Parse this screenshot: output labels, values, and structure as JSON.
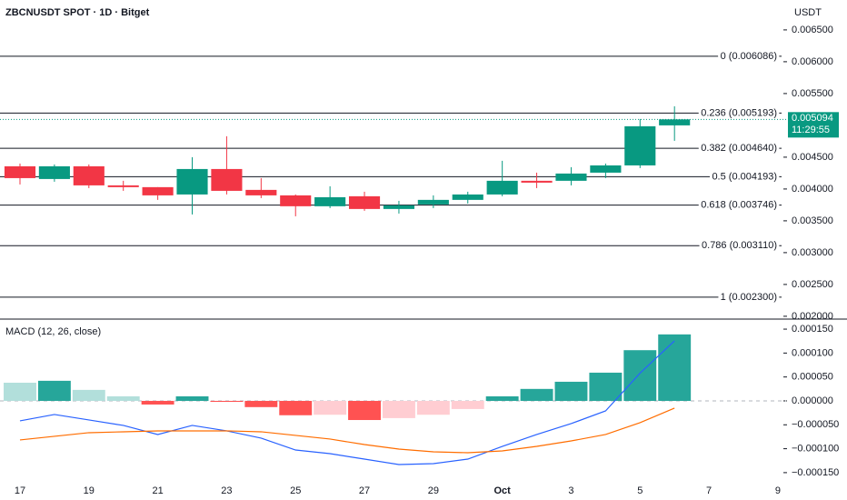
{
  "chart_data": [
    {
      "type": "candlestick",
      "title": "ZBCNUSDT SPOT · 1D · Bitget",
      "y_axis_label": "USDT",
      "x": [
        0,
        1,
        2,
        3,
        4,
        5,
        6,
        7,
        8,
        9,
        10,
        11,
        12,
        13,
        14,
        15,
        16,
        17,
        18,
        19
      ],
      "open": [
        0.004357,
        0.004157,
        0.004357,
        0.004057,
        0.004029,
        0.003914,
        0.004314,
        0.003986,
        0.0039,
        0.003729,
        0.003886,
        0.003686,
        0.003757,
        0.003829,
        0.003914,
        0.004129,
        0.004129,
        0.004257,
        0.004371,
        0.005
      ],
      "high": [
        0.0044,
        0.004386,
        0.004386,
        0.004129,
        0.004029,
        0.0045,
        0.004829,
        0.004171,
        0.003914,
        0.004043,
        0.003957,
        0.003814,
        0.0039,
        0.003957,
        0.004443,
        0.004257,
        0.004343,
        0.0044,
        0.0051,
        0.0053
      ],
      "low": [
        0.004071,
        0.004114,
        0.004014,
        0.003971,
        0.003829,
        0.0036,
        0.003914,
        0.003857,
        0.003571,
        0.0037,
        0.003657,
        0.003614,
        0.0037,
        0.003771,
        0.003886,
        0.004014,
        0.004057,
        0.004171,
        0.004329,
        0.004757
      ],
      "close": [
        0.004171,
        0.004357,
        0.004057,
        0.004029,
        0.0039,
        0.004314,
        0.003971,
        0.0039,
        0.003729,
        0.003871,
        0.003686,
        0.003743,
        0.003829,
        0.003914,
        0.004129,
        0.0041,
        0.004243,
        0.004371,
        0.004986,
        0.005094
      ],
      "up_color": "#089981",
      "down_color": "#f23645",
      "xlim": [
        -0.58,
        22.24
      ],
      "ylim": [
        0.00197,
        0.00697
      ],
      "yticks": [
        {
          "value": 0.0065,
          "label": "0.006500"
        },
        {
          "value": 0.006,
          "label": "0.006000"
        },
        {
          "value": 0.0055,
          "label": "0.005500"
        },
        {
          "value": 0.0045,
          "label": "0.004500"
        },
        {
          "value": 0.004,
          "label": "0.004000"
        },
        {
          "value": 0.0035,
          "label": "0.003500"
        },
        {
          "value": 0.003,
          "label": "0.003000"
        },
        {
          "value": 0.0025,
          "label": "0.002500"
        },
        {
          "value": 0.002,
          "label": "0.002000"
        }
      ],
      "fib_levels": [
        {
          "value": 0.006086,
          "label": "0 (0.006086)"
        },
        {
          "value": 0.005193,
          "label": "0.236 (0.005193)"
        },
        {
          "value": 0.00464,
          "label": "0.382 (0.004640)"
        },
        {
          "value": 0.004193,
          "label": "0.5 (0.004193)"
        },
        {
          "value": 0.003746,
          "label": "0.618 (0.003746)"
        },
        {
          "value": 0.00311,
          "label": "0.786 (0.003110)"
        },
        {
          "value": 0.0023,
          "label": "1 (0.002300)"
        }
      ],
      "last_price": 0.005094,
      "countdown": "11:29:55",
      "last_price_color": "#089981"
    },
    {
      "type": "macd",
      "title": "MACD (12, 26, close)",
      "x": [
        0,
        1,
        2,
        3,
        4,
        5,
        6,
        7,
        8,
        9,
        10,
        11,
        12,
        13,
        14,
        15,
        16,
        17,
        18,
        19
      ],
      "histogram": {
        "values": [
          3.8e-05,
          4.2e-05,
          2.3e-05,
          9.5e-06,
          -7.6e-06,
          9.5e-06,
          -2e-06,
          -1.3e-05,
          -3e-05,
          -2.9e-05,
          -4e-05,
          -3.6e-05,
          -2.9e-05,
          -1.7e-05,
          9.5e-06,
          2.5e-05,
          4e-05,
          5.9e-05,
          0.000106,
          0.000139
        ],
        "colors": [
          "#b2dfdb",
          "#26a69a",
          "#b2dfdb",
          "#b2dfdb",
          "#ff5252",
          "#26a69a",
          "#ff5252",
          "#ff5252",
          "#ff5252",
          "#ffcdd2",
          "#ff5252",
          "#ffcdd2",
          "#ffcdd2",
          "#ffcdd2",
          "#26a69a",
          "#26a69a",
          "#26a69a",
          "#26a69a",
          "#26a69a",
          "#26a69a"
        ]
      },
      "macd_line": {
        "color": "#2962ff",
        "values": [
          -4.18e-05,
          -2.85e-05,
          -3.99e-05,
          -5.13e-05,
          -7.03e-05,
          -5.13e-05,
          -6.27e-05,
          -7.79e-05,
          -0.0001027,
          -0.0001103,
          -0.0001217,
          -0.0001331,
          -0.0001312,
          -0.0001217,
          -9.51e-05,
          -7.03e-05,
          -4.75e-05,
          -2.09e-05,
          5.8e-05,
          0.0001255
        ]
      },
      "signal_line": {
        "color": "#ff6d00",
        "values": [
          -8.17e-05,
          -7.41e-05,
          -6.65e-05,
          -6.46e-05,
          -6.27e-05,
          -6.27e-05,
          -6.27e-05,
          -6.46e-05,
          -7.22e-05,
          -7.98e-05,
          -9.13e-05,
          -0.0001008,
          -0.0001065,
          -0.0001084,
          -0.0001046,
          -9.51e-05,
          -8.37e-05,
          -7.03e-05,
          -4.56e-05,
          -1.52e-05
        ]
      },
      "xlim": [
        -0.58,
        22.24
      ],
      "ylim": [
        -0.000173,
        0.000171
      ],
      "yticks": [
        {
          "value": 0.00015,
          "label": "0.000150"
        },
        {
          "value": 0.0001,
          "label": "0.000100"
        },
        {
          "value": 5e-05,
          "label": "0.000050"
        },
        {
          "value": 0,
          "label": "0.000000"
        },
        {
          "value": -5e-05,
          "label": "−0.000050"
        },
        {
          "value": -0.0001,
          "label": "−0.000100"
        },
        {
          "value": -0.00015,
          "label": "−0.000150"
        }
      ],
      "xticks": [
        {
          "value": 0,
          "label": "17"
        },
        {
          "value": 2,
          "label": "19"
        },
        {
          "value": 4,
          "label": "21"
        },
        {
          "value": 6,
          "label": "23"
        },
        {
          "value": 8,
          "label": "25"
        },
        {
          "value": 10,
          "label": "27"
        },
        {
          "value": 12,
          "label": "29"
        },
        {
          "value": 14,
          "label": "Oct"
        },
        {
          "value": 16,
          "label": "3"
        },
        {
          "value": 18,
          "label": "5"
        },
        {
          "value": 20,
          "label": "7"
        },
        {
          "value": 22,
          "label": "9"
        }
      ]
    }
  ]
}
